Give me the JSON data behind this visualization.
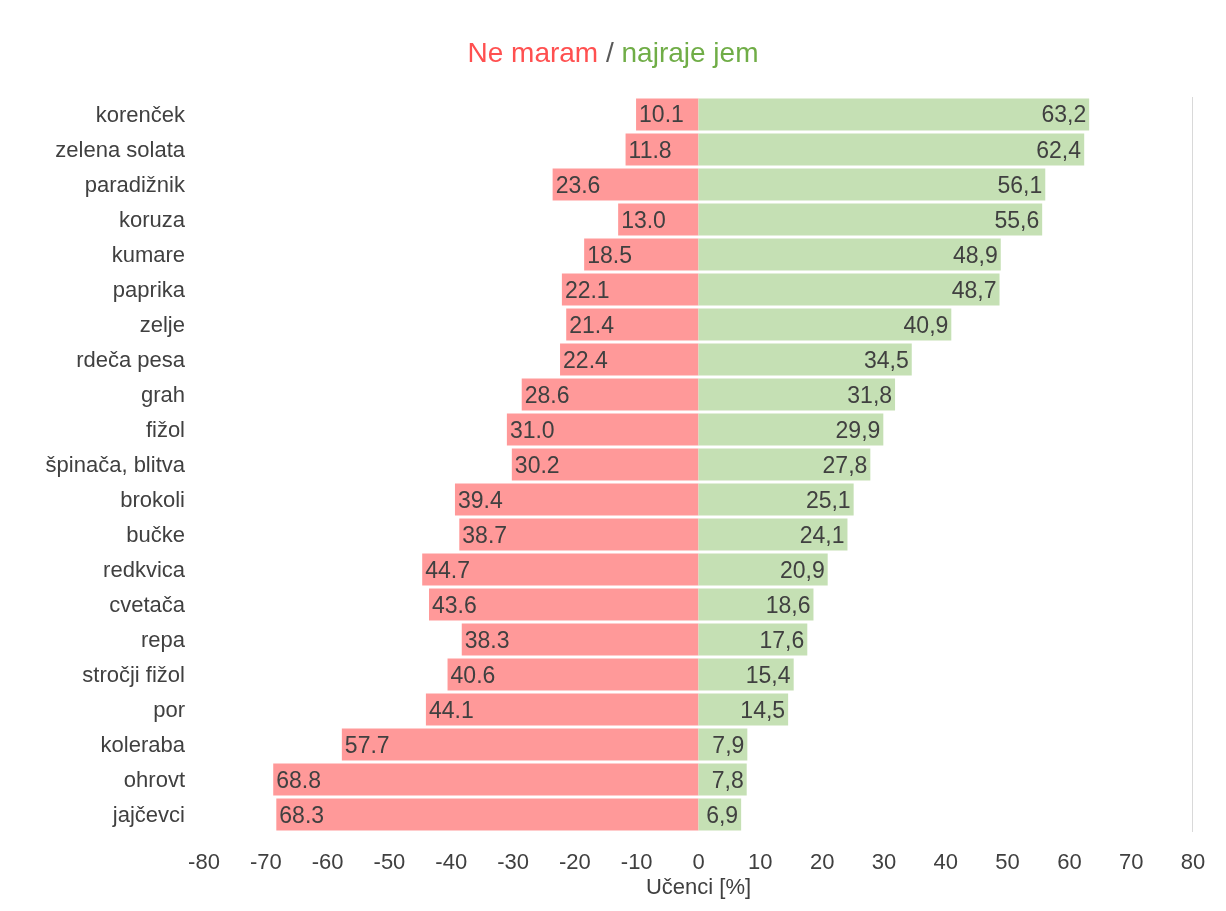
{
  "chart_data": {
    "type": "bar",
    "title": "Ne maram / najraje jem",
    "xlabel": "Učenci [%]",
    "orientation": "horizontal",
    "categories": [
      "korenček",
      "zelena solata",
      "paradižnik",
      "koruza",
      "kumare",
      "paprika",
      "zelje",
      "rdeča pesa",
      "grah",
      "fižol",
      "špinača, blitva",
      "brokoli",
      "bučke",
      "redkvica",
      "cvetača",
      "repa",
      "stročji fižol",
      "por",
      "koleraba",
      "ohrovt",
      "jajčevci"
    ],
    "series": [
      {
        "color": "#ff9999",
        "values": [
          10.1,
          11.8,
          23.6,
          13.0,
          18.5,
          22.1,
          21.4,
          22.4,
          28.6,
          31.0,
          30.2,
          39.4,
          38.7,
          44.7,
          43.6,
          38.3,
          40.6,
          44.1,
          57.7,
          68.8,
          68.3
        ],
        "base": [
          -10.1,
          -11.8,
          -23.6,
          -13.0,
          -18.5,
          -22.1,
          -21.4,
          -22.4,
          -28.6,
          -31.0,
          -30.2,
          -39.4,
          -38.7,
          -44.7,
          -43.6,
          -38.3,
          -40.6,
          -44.1,
          -57.7,
          -68.8,
          -68.3
        ],
        "value_labels": [
          "10.1",
          "11.8",
          "23.6",
          "13.0",
          "18.5",
          "22.1",
          "21.4",
          "22.4",
          "28.6",
          "31.0",
          "30.2",
          "39.4",
          "38.7",
          "44.7",
          "43.6",
          "38.3",
          "40.6",
          "44.1",
          "57.7",
          "68.8",
          "68.3"
        ]
      },
      {
        "color": "#c5e0b4",
        "values": [
          63.2,
          62.4,
          56.1,
          55.6,
          48.9,
          48.7,
          40.9,
          34.5,
          31.8,
          29.9,
          27.8,
          25.1,
          24.1,
          20.9,
          18.6,
          17.6,
          15.4,
          14.5,
          7.9,
          7.8,
          6.9
        ],
        "value_labels": [
          "63,2",
          "62,4",
          "56,1",
          "55,6",
          "48,9",
          "48,7",
          "40,9",
          "34,5",
          "31,8",
          "29,9",
          "27,8",
          "25,1",
          "24,1",
          "20,9",
          "18,6",
          "17,6",
          "15,4",
          "14,5",
          "7,9",
          "7,8",
          "6,9"
        ]
      }
    ],
    "xlim": [
      -80,
      80
    ],
    "xticks": [
      -80,
      -70,
      -60,
      -50,
      -40,
      -30,
      -20,
      -10,
      0,
      10,
      20,
      30,
      40,
      50,
      60,
      70,
      80
    ],
    "ref_lines": [
      {
        "axis": "x",
        "value": 80,
        "color": "#d9d9d9"
      }
    ]
  }
}
